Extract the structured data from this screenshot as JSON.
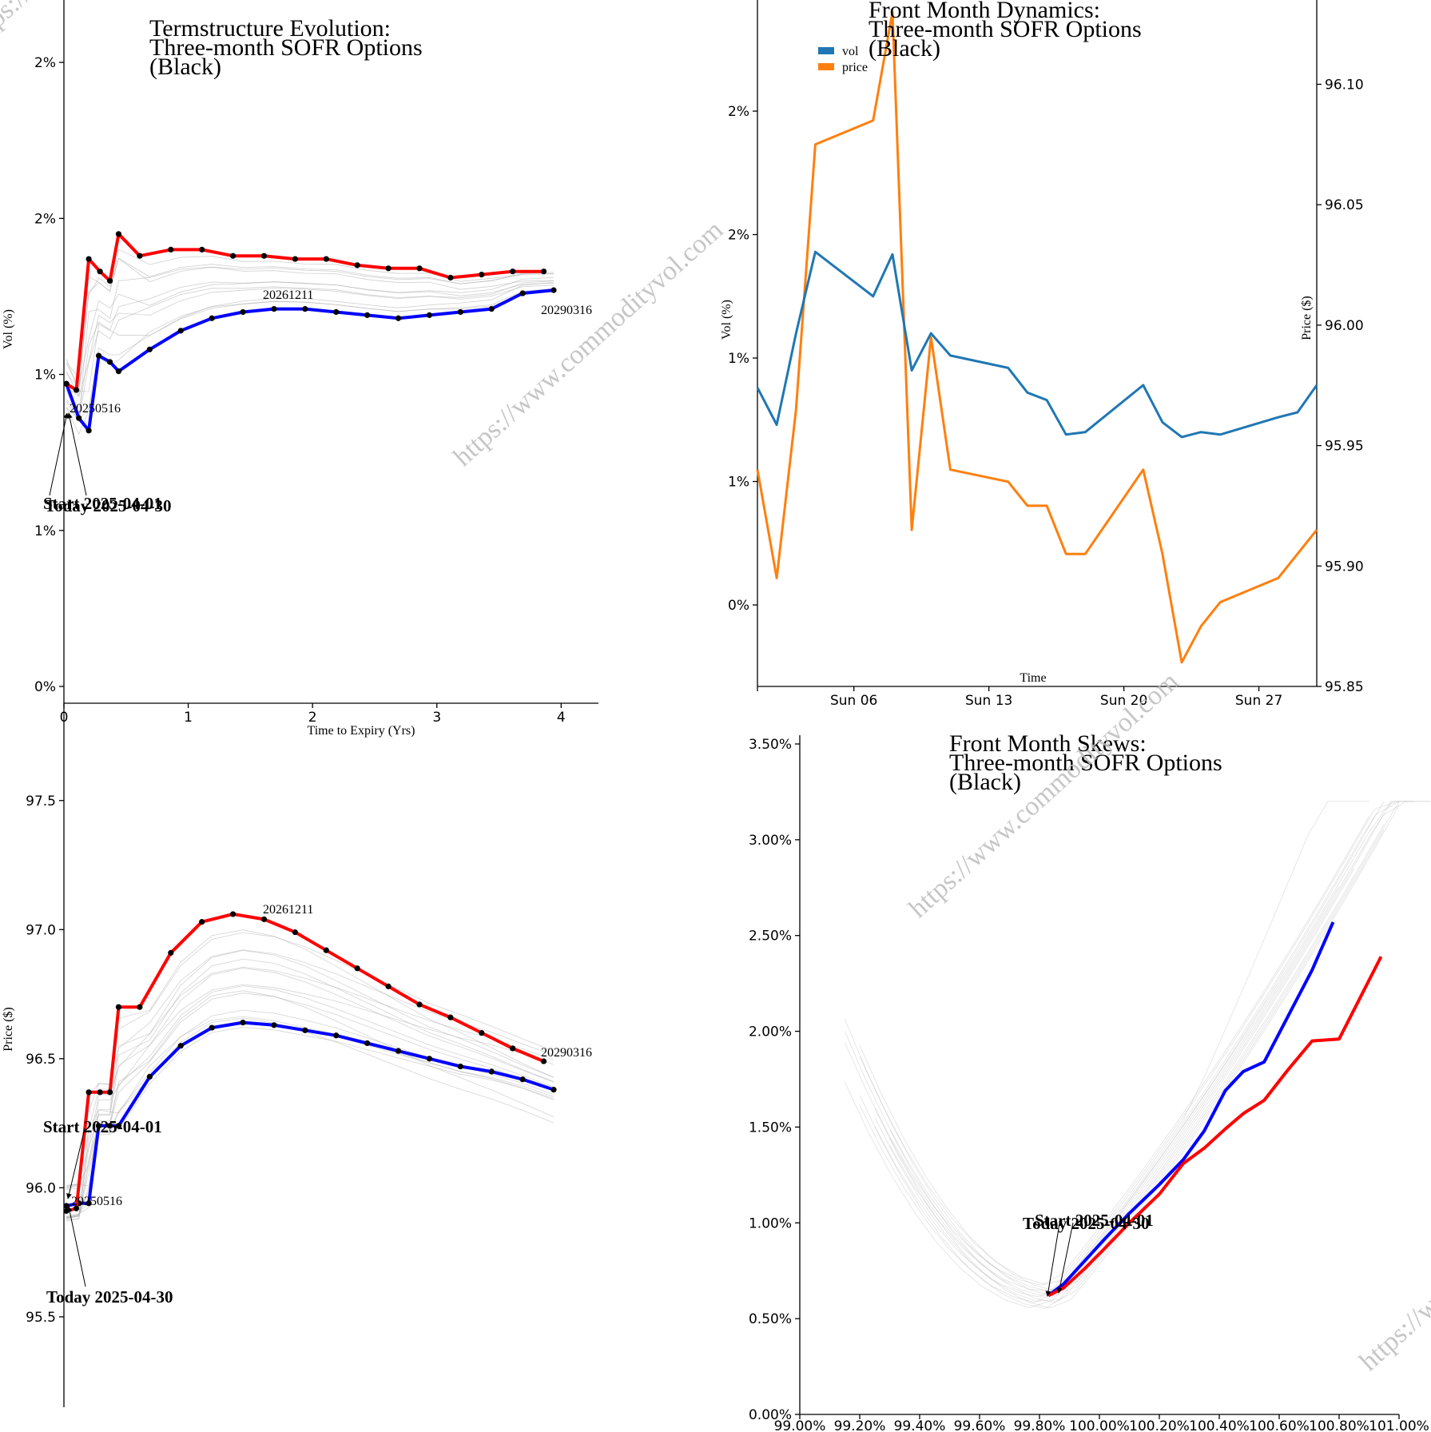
{
  "colors": {
    "today": "#ff0000",
    "start": "#0000ff",
    "history": "#aaaaaa",
    "vol": "#1f77b4",
    "price": "#ff7f0e"
  },
  "watermark": "https://www.commodityvol.com",
  "charts": {
    "term_vol": {
      "title": [
        "Termstructure Evolution:",
        "Three-month SOFR Options",
        "(Black)"
      ],
      "xlabel": "Time to Expiry (Yrs)",
      "ylabel": "Vol (%)",
      "x_ticks": [
        "0",
        "1",
        "2",
        "3",
        "4"
      ],
      "y_ticks": [
        "0%",
        "1%",
        "1%",
        "2%",
        "2%"
      ],
      "labels": {
        "first": "20250516",
        "mid": "20261211",
        "last": "20290316",
        "start": "Start 2025-04-01",
        "today": "Today 2025-04-30"
      }
    },
    "front_dyn": {
      "title": [
        "Front Month Dynamics:",
        "Three-month SOFR Options",
        "(Black)"
      ],
      "xlabel": "Time",
      "ylabel": "Vol (%)",
      "y2label": "Price ($)",
      "legend": [
        "vol",
        "price"
      ],
      "x_ticks": [
        "Sun 06",
        "Sun 13",
        "Sun 20",
        "Sun 27"
      ],
      "y_ticks": [
        "0%",
        "1%",
        "1%",
        "2%",
        "2%"
      ],
      "y2_ticks": [
        "95.85",
        "95.90",
        "95.95",
        "96.00",
        "96.05",
        "96.10"
      ]
    },
    "term_price": {
      "ylabel": "Price ($)",
      "y_ticks": [
        "95.5",
        "96.0",
        "96.5",
        "97.0",
        "97.5"
      ],
      "labels": {
        "first": "20250516",
        "mid": "20261211",
        "last": "20290316",
        "start": "Start 2025-04-01",
        "today": "Today 2025-04-30"
      }
    },
    "skew": {
      "title": [
        "Front Month Skews:",
        "Three-month SOFR Options",
        "(Black)"
      ],
      "x_ticks": [
        "99.00%",
        "99.20%",
        "99.40%",
        "99.60%",
        "99.80%",
        "100.00%",
        "100.20%",
        "100.40%",
        "100.60%",
        "100.80%",
        "101.00%"
      ],
      "y_ticks": [
        "0.00%",
        "0.50%",
        "1.00%",
        "1.50%",
        "2.00%",
        "2.50%",
        "3.00%",
        "3.50%"
      ],
      "labels": {
        "start": "Start 2025-04-01",
        "today": "Today 2025-04-30"
      }
    }
  },
  "chart_data": [
    {
      "type": "line",
      "title": "Termstructure Evolution: Three-month SOFR Options (Black)",
      "xlabel": "Time to Expiry (Yrs)",
      "ylabel": "Vol (%)",
      "xlim": [
        0,
        4.3
      ],
      "ylim": [
        0,
        2.2
      ],
      "series": [
        {
          "name": "Today 2025-04-30",
          "x": [
            0.02,
            0.1,
            0.2,
            0.29,
            0.37,
            0.44,
            0.61,
            0.86,
            1.11,
            1.36,
            1.61,
            1.86,
            2.11,
            2.36,
            2.61,
            2.86,
            3.11,
            3.36,
            3.61,
            3.86
          ],
          "y": [
            0.97,
            0.95,
            1.37,
            1.33,
            1.3,
            1.45,
            1.38,
            1.4,
            1.4,
            1.38,
            1.38,
            1.37,
            1.37,
            1.35,
            1.34,
            1.34,
            1.31,
            1.32,
            1.33,
            1.33
          ]
        },
        {
          "name": "Start 2025-04-01",
          "x": [
            0.02,
            0.12,
            0.2,
            0.28,
            0.37,
            0.44,
            0.69,
            0.94,
            1.19,
            1.44,
            1.69,
            1.94,
            2.19,
            2.44,
            2.69,
            2.94,
            3.19,
            3.44,
            3.69,
            3.94
          ],
          "y": [
            0.97,
            0.86,
            0.82,
            1.06,
            1.04,
            1.01,
            1.08,
            1.14,
            1.18,
            1.2,
            1.21,
            1.21,
            1.2,
            1.19,
            1.18,
            1.19,
            1.2,
            1.21,
            1.26,
            1.27
          ]
        }
      ]
    },
    {
      "type": "line",
      "title": "Front Month Dynamics: Three-month SOFR Options (Black)",
      "xlabel": "Time",
      "ylabel": "Vol (%)",
      "y2label": "Price ($)",
      "x": [
        "2025-04-01",
        "2025-04-02",
        "2025-04-03",
        "2025-04-04",
        "2025-04-07",
        "2025-04-08",
        "2025-04-09",
        "2025-04-10",
        "2025-04-11",
        "2025-04-14",
        "2025-04-15",
        "2025-04-16",
        "2025-04-17",
        "2025-04-18",
        "2025-04-21",
        "2025-04-22",
        "2025-04-23",
        "2025-04-24",
        "2025-04-25",
        "2025-04-28",
        "2025-04-29",
        "2025-04-30"
      ],
      "ylim": [
        -0.33,
        2.45
      ],
      "y2lim": [
        95.85,
        96.135
      ],
      "series": [
        {
          "name": "vol",
          "axis": "left",
          "values": [
            0.88,
            0.73,
            1.1,
            1.43,
            1.25,
            1.42,
            0.95,
            1.1,
            1.01,
            0.96,
            0.86,
            0.83,
            0.69,
            0.7,
            0.89,
            0.74,
            0.68,
            0.7,
            0.69,
            0.76,
            0.78,
            0.89
          ]
        },
        {
          "name": "price",
          "axis": "right",
          "values": [
            95.94,
            95.895,
            95.965,
            96.075,
            96.085,
            96.13,
            95.915,
            95.995,
            95.94,
            95.935,
            95.925,
            95.925,
            95.905,
            95.905,
            95.94,
            95.905,
            95.86,
            95.875,
            95.885,
            95.895,
            95.905,
            95.915
          ]
        }
      ]
    },
    {
      "type": "line",
      "title": "",
      "xlabel": "Time to Expiry (Yrs)",
      "ylabel": "Price ($)",
      "xlim": [
        0,
        4.3
      ],
      "ylim": [
        95.15,
        97.75
      ],
      "series": [
        {
          "name": "Today 2025-04-30",
          "x": [
            0.02,
            0.1,
            0.2,
            0.29,
            0.37,
            0.44,
            0.61,
            0.86,
            1.11,
            1.36,
            1.61,
            1.86,
            2.11,
            2.36,
            2.61,
            2.86,
            3.11,
            3.36,
            3.61,
            3.86
          ],
          "y": [
            95.91,
            95.92,
            96.37,
            96.37,
            96.37,
            96.7,
            96.7,
            96.91,
            97.03,
            97.06,
            97.04,
            96.99,
            96.92,
            96.85,
            96.78,
            96.71,
            96.66,
            96.6,
            96.54,
            96.49
          ]
        },
        {
          "name": "Start 2025-04-01",
          "x": [
            0.02,
            0.12,
            0.2,
            0.28,
            0.37,
            0.44,
            0.69,
            0.94,
            1.19,
            1.44,
            1.69,
            1.94,
            2.19,
            2.44,
            2.69,
            2.94,
            3.19,
            3.44,
            3.69,
            3.94
          ],
          "y": [
            95.93,
            95.94,
            95.94,
            96.24,
            96.24,
            96.24,
            96.43,
            96.55,
            96.62,
            96.64,
            96.63,
            96.61,
            96.59,
            96.56,
            96.53,
            96.5,
            96.47,
            96.45,
            96.42,
            96.38
          ]
        }
      ]
    },
    {
      "type": "line",
      "title": "Front Month Skews: Three-month SOFR Options (Black)",
      "xlim": [
        99.0,
        101.0
      ],
      "ylim": [
        0,
        3.55
      ],
      "series": [
        {
          "name": "Start 2025-04-01",
          "x": [
            99.83,
            99.88,
            99.95,
            100.02,
            100.1,
            100.2,
            100.28,
            100.35,
            100.42,
            100.48,
            100.55,
            100.63,
            100.71,
            100.78
          ],
          "y": [
            0.62,
            0.68,
            0.8,
            0.92,
            1.05,
            1.2,
            1.33,
            1.48,
            1.69,
            1.79,
            1.84,
            2.08,
            2.32,
            2.57
          ]
        },
        {
          "name": "Today 2025-04-30",
          "x": [
            99.83,
            99.88,
            99.95,
            100.02,
            100.1,
            100.2,
            100.28,
            100.35,
            100.42,
            100.48,
            100.55,
            100.63,
            100.71,
            100.8,
            100.94
          ],
          "y": [
            0.62,
            0.66,
            0.76,
            0.87,
            1.0,
            1.15,
            1.31,
            1.39,
            1.49,
            1.57,
            1.64,
            1.8,
            1.95,
            1.96,
            2.39
          ]
        }
      ]
    }
  ]
}
